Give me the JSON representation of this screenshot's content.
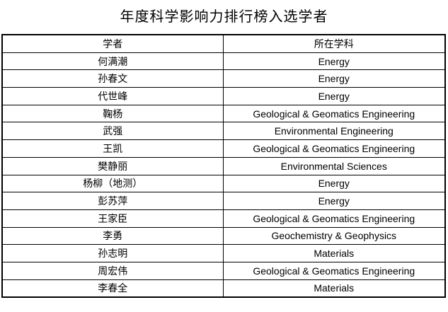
{
  "page": {
    "title": "年度科学影响力排行榜入选学者"
  },
  "table": {
    "headers": [
      "学者",
      "所在学科"
    ],
    "rows": [
      [
        "何满潮",
        "Energy"
      ],
      [
        "孙春文",
        "Energy"
      ],
      [
        "代世峰",
        "Energy"
      ],
      [
        "鞠杨",
        "Geological & Geomatics Engineering"
      ],
      [
        "武强",
        "Environmental Engineering"
      ],
      [
        "王凯",
        "Geological & Geomatics Engineering"
      ],
      [
        "樊静丽",
        "Environmental Sciences"
      ],
      [
        "杨柳（地测）",
        "Energy"
      ],
      [
        "彭苏萍",
        "Energy"
      ],
      [
        "王家臣",
        "Geological & Geomatics Engineering"
      ],
      [
        "李勇",
        "Geochemistry & Geophysics"
      ],
      [
        "孙志明",
        "Materials"
      ],
      [
        "周宏伟",
        "Geological & Geomatics Engineering"
      ],
      [
        "李春全",
        "Materials"
      ]
    ]
  },
  "colors": {
    "text": "#000000",
    "border": "#000000",
    "background": "#ffffff"
  }
}
